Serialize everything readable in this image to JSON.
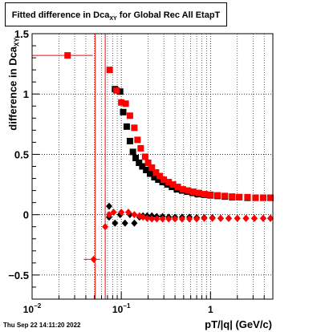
{
  "chart_data": {
    "type": "scatter",
    "title_main": "Fitted difference in Dca",
    "title_sub": "XY",
    "title_tail": " for Global Rec All EtapT",
    "xlabel": "pT/|q| (GeV/c)",
    "ylabel_main": "difference in Dca",
    "ylabel_sub": "XY",
    "timestamp": "Thu Sep 22 14:11:20 2022",
    "x_scale": "log",
    "xlim": [
      0.01,
      5
    ],
    "ylim": [
      -0.7,
      1.5
    ],
    "grid": true,
    "x_major_ticks": [
      {
        "value": 0.01,
        "base": "10",
        "exp": "−2"
      },
      {
        "value": 0.1,
        "base": "10",
        "exp": "−1"
      },
      {
        "value": 1,
        "base": "1",
        "exp": ""
      }
    ],
    "y_ticks": [
      {
        "value": -0.5,
        "label": "−0.5"
      },
      {
        "value": 0,
        "label": "0"
      },
      {
        "value": 0.5,
        "label": "0.5"
      },
      {
        "value": 1,
        "label": "1"
      },
      {
        "value": 1.5,
        "label": "1.5"
      }
    ],
    "vertical_lines": [
      0.051,
      0.066
    ],
    "colors": {
      "black_series": "#000000",
      "red_series": "#ff0000",
      "vlines": "#ff0000"
    },
    "series": [
      {
        "marker": "square",
        "color": "#000000",
        "points": [
          [
            0.085,
            1.04
          ],
          [
            0.097,
            1.02
          ],
          [
            0.105,
            0.85
          ],
          [
            0.115,
            0.73
          ],
          [
            0.125,
            0.61
          ],
          [
            0.135,
            0.52
          ],
          [
            0.145,
            0.47
          ],
          [
            0.158,
            0.43
          ],
          [
            0.172,
            0.4
          ],
          [
            0.19,
            0.37
          ],
          [
            0.21,
            0.34
          ],
          [
            0.235,
            0.31
          ],
          [
            0.26,
            0.29
          ],
          [
            0.29,
            0.27
          ],
          [
            0.33,
            0.25
          ],
          [
            0.37,
            0.23
          ],
          [
            0.42,
            0.21
          ],
          [
            0.48,
            0.2
          ],
          [
            0.55,
            0.19
          ],
          [
            0.63,
            0.18
          ],
          [
            0.72,
            0.17
          ],
          [
            0.85,
            0.165
          ],
          [
            1.0,
            0.16
          ],
          [
            1.2,
            0.155
          ],
          [
            1.45,
            0.15
          ],
          [
            1.75,
            0.145
          ],
          [
            2.1,
            0.145
          ],
          [
            2.6,
            0.14
          ],
          [
            3.2,
            0.14
          ],
          [
            3.9,
            0.14
          ],
          [
            4.7,
            0.14
          ]
        ]
      },
      {
        "marker": "diamond",
        "color": "#000000",
        "points": [
          [
            0.073,
            0.07
          ],
          [
            0.073,
            -0.02
          ],
          [
            0.085,
            -0.07
          ],
          [
            0.097,
            0.0
          ],
          [
            0.11,
            -0.07
          ],
          [
            0.125,
            0.0
          ],
          [
            0.14,
            -0.07
          ],
          [
            0.16,
            -0.02
          ],
          [
            0.175,
            -0.01
          ],
          [
            0.195,
            -0.01
          ],
          [
            0.22,
            -0.01
          ],
          [
            0.25,
            -0.015
          ],
          [
            0.29,
            -0.015
          ],
          [
            0.34,
            -0.02
          ],
          [
            0.4,
            -0.02
          ],
          [
            0.48,
            -0.02
          ],
          [
            0.58,
            -0.02
          ],
          [
            0.7,
            -0.025
          ],
          [
            0.85,
            -0.025
          ],
          [
            1.05,
            -0.025
          ],
          [
            1.3,
            -0.03
          ],
          [
            1.6,
            -0.03
          ],
          [
            2.0,
            -0.03
          ],
          [
            2.5,
            -0.03
          ],
          [
            3.1,
            -0.03
          ],
          [
            3.9,
            -0.03
          ],
          [
            4.7,
            -0.03
          ]
        ]
      },
      {
        "marker": "square",
        "color": "#ff0000",
        "points": [
          [
            0.025,
            1.32
          ],
          [
            0.074,
            1.2
          ],
          [
            0.088,
            1.03
          ],
          [
            0.1,
            0.93
          ],
          [
            0.112,
            0.92
          ],
          [
            0.125,
            0.82
          ],
          [
            0.14,
            0.72
          ],
          [
            0.152,
            0.62
          ],
          [
            0.165,
            0.55
          ],
          [
            0.185,
            0.48
          ],
          [
            0.2,
            0.43
          ],
          [
            0.22,
            0.39
          ],
          [
            0.245,
            0.35
          ],
          [
            0.27,
            0.32
          ],
          [
            0.3,
            0.29
          ],
          [
            0.34,
            0.27
          ],
          [
            0.38,
            0.25
          ],
          [
            0.43,
            0.23
          ],
          [
            0.49,
            0.21
          ],
          [
            0.56,
            0.2
          ],
          [
            0.64,
            0.19
          ],
          [
            0.74,
            0.18
          ],
          [
            0.86,
            0.17
          ],
          [
            1.0,
            0.165
          ],
          [
            1.2,
            0.16
          ],
          [
            1.45,
            0.155
          ],
          [
            1.75,
            0.15
          ],
          [
            2.1,
            0.145
          ],
          [
            2.6,
            0.145
          ],
          [
            3.2,
            0.14
          ],
          [
            3.9,
            0.14
          ],
          [
            4.7,
            0.14
          ]
        ]
      },
      {
        "marker": "diamond",
        "color": "#ff0000",
        "points": [
          [
            0.049,
            -0.37
          ],
          [
            0.066,
            -0.1
          ],
          [
            0.073,
            0.0
          ],
          [
            0.082,
            0.02
          ],
          [
            0.1,
            0.02
          ],
          [
            0.12,
            0.02
          ],
          [
            0.14,
            0.0
          ],
          [
            0.16,
            -0.01
          ],
          [
            0.175,
            -0.02
          ],
          [
            0.195,
            -0.03
          ],
          [
            0.22,
            -0.035
          ],
          [
            0.25,
            -0.035
          ],
          [
            0.29,
            -0.035
          ],
          [
            0.34,
            -0.035
          ],
          [
            0.4,
            -0.035
          ],
          [
            0.48,
            -0.035
          ],
          [
            0.58,
            -0.035
          ],
          [
            0.7,
            -0.035
          ],
          [
            0.85,
            -0.03
          ],
          [
            1.05,
            -0.03
          ],
          [
            1.3,
            -0.03
          ],
          [
            1.6,
            -0.03
          ],
          [
            2.0,
            -0.03
          ],
          [
            2.5,
            -0.03
          ],
          [
            3.1,
            -0.03
          ],
          [
            3.9,
            -0.03
          ],
          [
            4.7,
            -0.03
          ]
        ]
      }
    ]
  }
}
